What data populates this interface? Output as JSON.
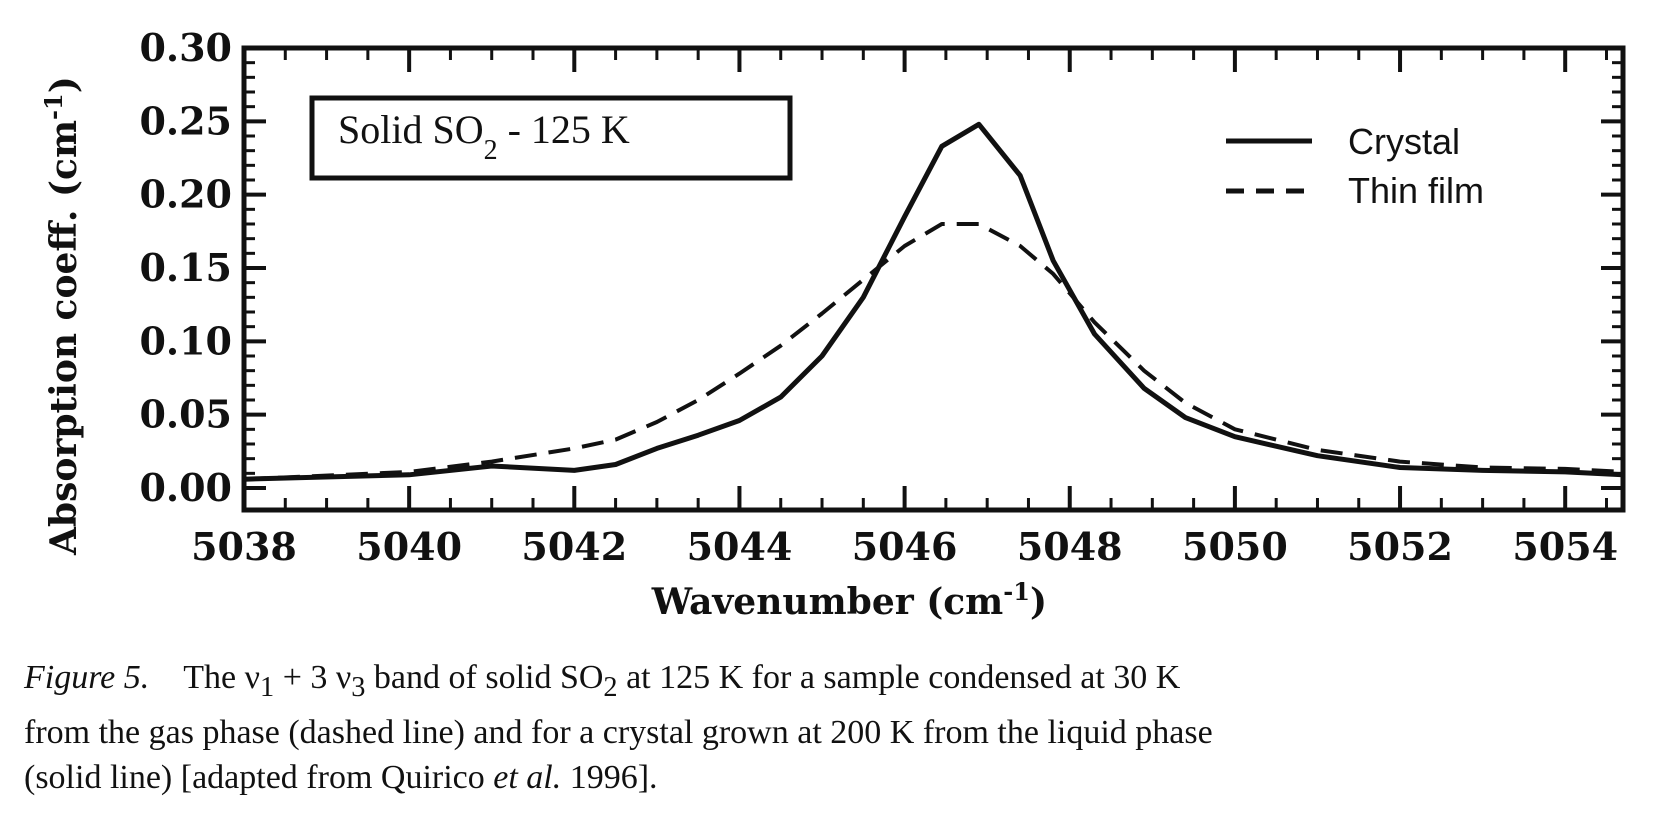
{
  "chart_data": {
    "type": "line",
    "xlabel": "Wavenumber (cm",
    "xlabel_sup": "-1",
    "xlabel_end": ")",
    "ylabel": "Absorption coeff. (cm",
    "ylabel_sup": "-1",
    "ylabel_end": ")",
    "xlim": [
      5038,
      5054.7
    ],
    "ylim": [
      -0.015,
      0.3
    ],
    "xticks": [
      "5038",
      "5040",
      "5042",
      "5044",
      "5046",
      "5048",
      "5050",
      "5052",
      "5054"
    ],
    "yticks": [
      "0.00",
      "0.05",
      "0.10",
      "0.15",
      "0.20",
      "0.25",
      "0.30"
    ],
    "grid": false,
    "legend_position": "top-right",
    "annotation": {
      "text": "Solid  SO",
      "sub": "2",
      "rest": "  -  125 K"
    },
    "series": [
      {
        "name": "Crystal",
        "style": "solid",
        "color": "#111111",
        "x": [
          5038.0,
          5040.0,
          5041.0,
          5042.0,
          5042.5,
          5043.0,
          5043.5,
          5044.0,
          5044.5,
          5045.0,
          5045.5,
          5046.0,
          5046.45,
          5046.9,
          5047.4,
          5047.8,
          5048.3,
          5048.9,
          5049.4,
          5050.0,
          5051.0,
          5052.0,
          5053.0,
          5054.0,
          5054.7
        ],
        "y": [
          0.006,
          0.009,
          0.015,
          0.012,
          0.016,
          0.027,
          0.036,
          0.046,
          0.062,
          0.09,
          0.13,
          0.185,
          0.233,
          0.248,
          0.213,
          0.155,
          0.105,
          0.068,
          0.048,
          0.035,
          0.022,
          0.014,
          0.012,
          0.011,
          0.009
        ]
      },
      {
        "name": "Thin film",
        "style": "dashed",
        "color": "#111111",
        "x": [
          5038.0,
          5040.0,
          5041.0,
          5042.0,
          5042.5,
          5043.0,
          5043.5,
          5044.0,
          5044.5,
          5045.0,
          5045.5,
          5046.0,
          5046.45,
          5046.9,
          5047.4,
          5047.8,
          5048.3,
          5048.9,
          5049.4,
          5050.0,
          5051.0,
          5052.0,
          5053.0,
          5054.0,
          5054.7
        ],
        "y": [
          0.006,
          0.011,
          0.018,
          0.027,
          0.033,
          0.045,
          0.06,
          0.078,
          0.097,
          0.119,
          0.142,
          0.165,
          0.18,
          0.18,
          0.165,
          0.146,
          0.113,
          0.08,
          0.058,
          0.04,
          0.026,
          0.018,
          0.014,
          0.013,
          0.011
        ]
      }
    ]
  },
  "caption": {
    "label": "Figure 5.",
    "line1_a": "The ν",
    "line1_sub1": "1",
    "line1_b": " + 3 ν",
    "line1_sub3": "3",
    "line1_c": " band of solid SO",
    "line1_sub2": "2",
    "line1_d": " at 125 K for a sample condensed at 30 K",
    "line2": "from the gas phase (dashed line) and for a crystal grown at 200 K from the liquid phase",
    "line3_a": "(solid line) [adapted from Quirico ",
    "line3_etal": "et al.",
    "line3_b": " 1996]."
  }
}
